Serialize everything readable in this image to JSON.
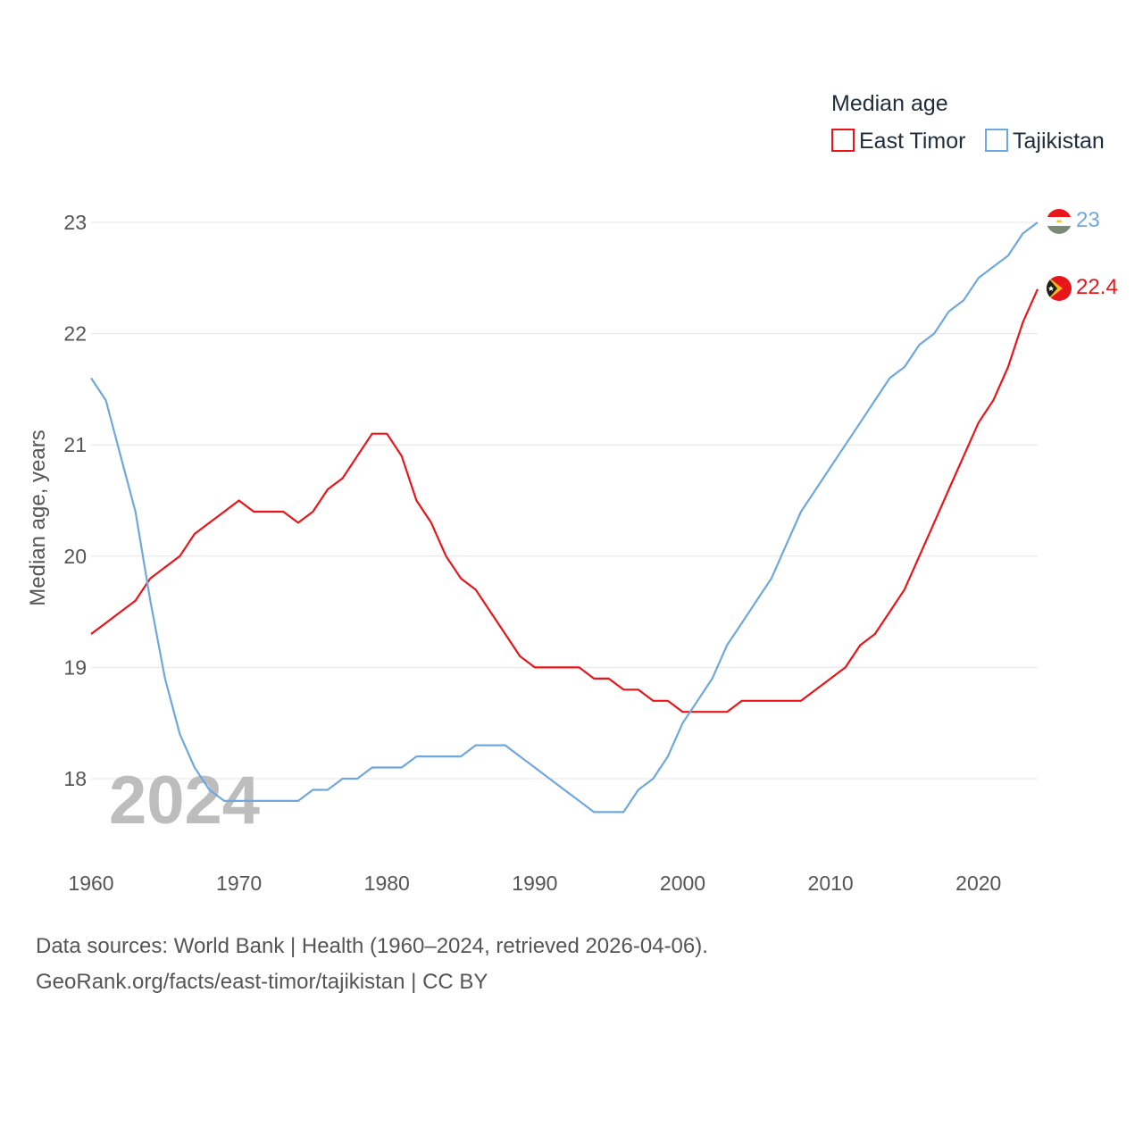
{
  "legend": {
    "title": "Median age",
    "items": [
      {
        "name": "East Timor",
        "color": "#e8161b"
      },
      {
        "name": "Tajikistan",
        "color": "#6fa8dc"
      }
    ]
  },
  "watermark_year": "2024",
  "footer": {
    "line1": "Data sources: World Bank | Health (1960–2024, retrieved 2026-04-06).",
    "line2": "GeoRank.org/facts/east-timor/tajikistan | CC BY"
  },
  "chart_data": {
    "type": "line",
    "title": "Median age",
    "xlabel": "",
    "ylabel": "Median age, years",
    "xlim": [
      1960,
      2024
    ],
    "ylim": [
      17.4,
      23.2
    ],
    "xticks": [
      1960,
      1970,
      1980,
      1990,
      2000,
      2010,
      2020
    ],
    "yticks": [
      18,
      19,
      20,
      21,
      22,
      23
    ],
    "grid": true,
    "legend_position": "top-right",
    "x": [
      1960,
      1961,
      1962,
      1963,
      1964,
      1965,
      1966,
      1967,
      1968,
      1969,
      1970,
      1971,
      1972,
      1973,
      1974,
      1975,
      1976,
      1977,
      1978,
      1979,
      1980,
      1981,
      1982,
      1983,
      1984,
      1985,
      1986,
      1987,
      1988,
      1989,
      1990,
      1991,
      1992,
      1993,
      1994,
      1995,
      1996,
      1997,
      1998,
      1999,
      2000,
      2001,
      2002,
      2003,
      2004,
      2005,
      2006,
      2007,
      2008,
      2009,
      2010,
      2011,
      2012,
      2013,
      2014,
      2015,
      2016,
      2017,
      2018,
      2019,
      2020,
      2021,
      2022,
      2023,
      2024
    ],
    "series": [
      {
        "name": "East Timor",
        "color": "#e8161b",
        "end_label": "22.4",
        "values": [
          19.3,
          19.4,
          19.5,
          19.6,
          19.8,
          19.9,
          20.0,
          20.2,
          20.3,
          20.4,
          20.5,
          20.4,
          20.4,
          20.4,
          20.3,
          20.4,
          20.6,
          20.7,
          20.9,
          21.1,
          21.1,
          20.9,
          20.5,
          20.3,
          20.0,
          19.8,
          19.7,
          19.5,
          19.3,
          19.1,
          19.0,
          19.0,
          19.0,
          19.0,
          18.9,
          18.9,
          18.8,
          18.8,
          18.7,
          18.7,
          18.6,
          18.6,
          18.6,
          18.6,
          18.7,
          18.7,
          18.7,
          18.7,
          18.7,
          18.8,
          18.9,
          19.0,
          19.2,
          19.3,
          19.5,
          19.7,
          20.0,
          20.3,
          20.6,
          20.9,
          21.2,
          21.4,
          21.7,
          22.1,
          22.4
        ]
      },
      {
        "name": "Tajikistan",
        "color": "#6fa8dc",
        "end_label": "23",
        "values": [
          21.6,
          21.4,
          20.9,
          20.4,
          19.6,
          18.9,
          18.4,
          18.1,
          17.9,
          17.8,
          17.8,
          17.8,
          17.8,
          17.8,
          17.8,
          17.9,
          17.9,
          18.0,
          18.0,
          18.1,
          18.1,
          18.1,
          18.2,
          18.2,
          18.2,
          18.2,
          18.3,
          18.3,
          18.3,
          18.2,
          18.1,
          18.0,
          17.9,
          17.8,
          17.7,
          17.7,
          17.7,
          17.9,
          18.0,
          18.2,
          18.5,
          18.7,
          18.9,
          19.2,
          19.4,
          19.6,
          19.8,
          20.1,
          20.4,
          20.6,
          20.8,
          21.0,
          21.2,
          21.4,
          21.6,
          21.7,
          21.9,
          22.0,
          22.2,
          22.3,
          22.5,
          22.6,
          22.7,
          22.9,
          23.0
        ]
      }
    ]
  }
}
